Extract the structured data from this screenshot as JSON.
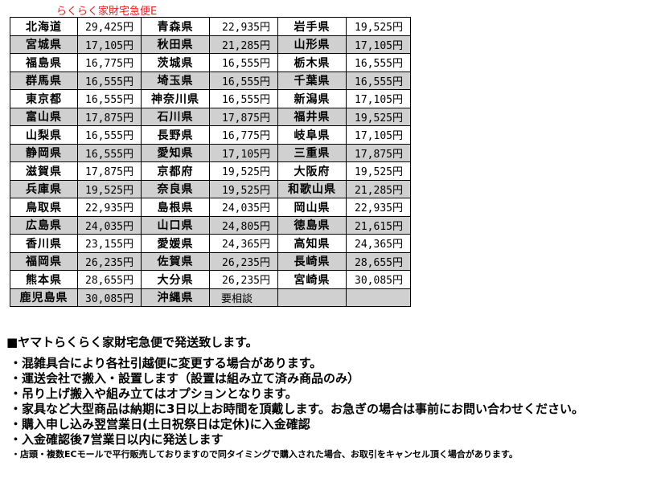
{
  "title": "らくらく家財宅急便E",
  "title_color": "#e8201c",
  "rows": [
    [
      [
        "北海道",
        "29,425円"
      ],
      [
        "青森県",
        "22,935円"
      ],
      [
        "岩手県",
        "19,525円"
      ]
    ],
    [
      [
        "宮城県",
        "17,105円"
      ],
      [
        "秋田県",
        "21,285円"
      ],
      [
        "山形県",
        "17,105円"
      ]
    ],
    [
      [
        "福島県",
        "16,775円"
      ],
      [
        "茨城県",
        "16,555円"
      ],
      [
        "栃木県",
        "16,555円"
      ]
    ],
    [
      [
        "群馬県",
        "16,555円"
      ],
      [
        "埼玉県",
        "16,555円"
      ],
      [
        "千葉県",
        "16,555円"
      ]
    ],
    [
      [
        "東京都",
        "16,555円"
      ],
      [
        "神奈川県",
        "16,555円"
      ],
      [
        "新潟県",
        "17,105円"
      ]
    ],
    [
      [
        "富山県",
        "17,875円"
      ],
      [
        "石川県",
        "17,875円"
      ],
      [
        "福井県",
        "19,525円"
      ]
    ],
    [
      [
        "山梨県",
        "16,555円"
      ],
      [
        "長野県",
        "16,775円"
      ],
      [
        "岐阜県",
        "17,105円"
      ]
    ],
    [
      [
        "静岡県",
        "16,555円"
      ],
      [
        "愛知県",
        "17,105円"
      ],
      [
        "三重県",
        "17,875円"
      ]
    ],
    [
      [
        "滋賀県",
        "17,875円"
      ],
      [
        "京都府",
        "19,525円"
      ],
      [
        "大阪府",
        "19,525円"
      ]
    ],
    [
      [
        "兵庫県",
        "19,525円"
      ],
      [
        "奈良県",
        "19,525円"
      ],
      [
        "和歌山県",
        "21,285円"
      ]
    ],
    [
      [
        "鳥取県",
        "22,935円"
      ],
      [
        "島根県",
        "24,035円"
      ],
      [
        "岡山県",
        "22,935円"
      ]
    ],
    [
      [
        "広島県",
        "24,035円"
      ],
      [
        "山口県",
        "24,805円"
      ],
      [
        "徳島県",
        "21,615円"
      ]
    ],
    [
      [
        "香川県",
        "23,155円"
      ],
      [
        "愛媛県",
        "24,365円"
      ],
      [
        "高知県",
        "24,365円"
      ]
    ],
    [
      [
        "福岡県",
        "26,235円"
      ],
      [
        "佐賀県",
        "26,235円"
      ],
      [
        "長崎県",
        "28,655円"
      ]
    ],
    [
      [
        "熊本県",
        "28,655円"
      ],
      [
        "大分県",
        "26,235円"
      ],
      [
        "宮崎県",
        "30,085円"
      ]
    ],
    [
      [
        "鹿児島県",
        "30,085円"
      ],
      [
        "沖縄県",
        "要相談"
      ],
      [
        "",
        ""
      ]
    ]
  ],
  "heading": "■ヤマトらくらく家財宅急便で発送致します。",
  "bullets": [
    "・混雑具合により各社引越便に変更する場合があります。",
    "・運送会社で搬入・設置します（設置は組み立て済み商品のみ）",
    "・吊り上げ搬入や組み立てはオプションとなります。",
    "・家具など大型商品は納期に3日以上お時間を頂戴します。お急ぎの場合は事前にお問い合わせください。",
    "・購入申し込み翌営業日(土日祝祭日は定休)に入金確認",
    "・入金確認後7営業日以内に発送します"
  ],
  "small_note": "・店頭・複数ECモールで平行販売しておりますので同タイミングで購入された場合、お取引をキャンセル頂く場合があります。",
  "colors": {
    "row_alt": "#d0d0d0"
  }
}
